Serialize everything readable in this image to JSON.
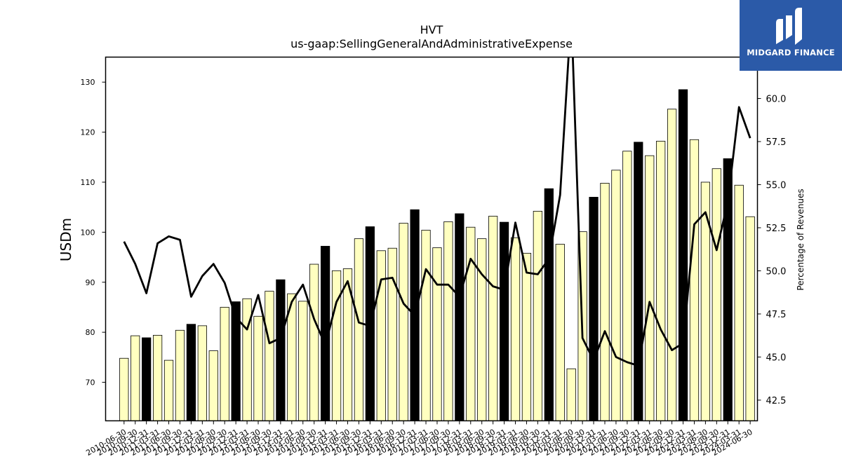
{
  "brand": {
    "name": "MIDGARD FINANCE",
    "bg_color": "#2b5aa8"
  },
  "chart_data": {
    "type": "bar",
    "title": "HVT",
    "subtitle": "us-gaap:SellingGeneralAndAdministrativeExpense",
    "ylabel": "USDm",
    "ylabel_right": "Percentage of Revenues",
    "ylim": [
      62.3,
      135.0
    ],
    "ylim_right": [
      41.3,
      62.4
    ],
    "yticks": [
      70,
      80,
      90,
      100,
      110,
      120,
      130
    ],
    "yticks_right": [
      "42.5",
      "45.0",
      "47.5",
      "50.0",
      "52.5",
      "55.0",
      "57.5",
      "60.0"
    ],
    "categories": [
      "2010-06-30",
      "2010-09-30",
      "2010-12-31",
      "2011-03-31",
      "2011-06-30",
      "2011-09-30",
      "2011-12-31",
      "2012-03-31",
      "2012-06-30",
      "2012-09-30",
      "2012-12-31",
      "2013-03-31",
      "2013-06-30",
      "2013-09-30",
      "2013-12-31",
      "2014-03-31",
      "2014-06-30",
      "2014-09-30",
      "2014-12-31",
      "2015-03-31",
      "2015-06-30",
      "2015-09-30",
      "2015-12-31",
      "2016-03-31",
      "2016-06-30",
      "2016-09-30",
      "2016-12-31",
      "2017-03-31",
      "2017-06-30",
      "2017-09-30",
      "2017-12-31",
      "2018-03-31",
      "2018-06-30",
      "2018-09-30",
      "2018-12-31",
      "2019-03-31",
      "2019-06-30",
      "2019-09-30",
      "2019-12-31",
      "2020-03-31",
      "2020-06-30",
      "2020-09-30",
      "2020-12-31",
      "2021-03-31",
      "2021-06-30",
      "2021-09-30",
      "2021-12-31",
      "2022-03-31",
      "2022-06-30",
      "2022-09-30",
      "2022-12-31",
      "2023-03-31",
      "2023-06-30",
      "2023-09-30",
      "2023-12-31",
      "2024-03-31",
      "2024-06-30"
    ],
    "series": [
      {
        "type": "bar",
        "values": [
          74.8,
          79.3,
          78.9,
          79.4,
          74.4,
          80.4,
          81.6,
          81.3,
          76.3,
          85.0,
          86.1,
          86.7,
          83.2,
          88.2,
          90.5,
          87.7,
          86.2,
          93.6,
          97.2,
          92.3,
          92.7,
          98.7,
          101.1,
          96.3,
          96.8,
          101.8,
          104.5,
          100.4,
          96.9,
          102.1,
          103.7,
          101.0,
          98.7,
          103.2,
          102.0,
          98.9,
          95.8,
          104.2,
          108.7,
          97.6,
          72.7,
          100.1,
          107.0,
          109.8,
          112.4,
          116.2,
          118.0,
          115.3,
          118.2,
          124.6,
          128.5,
          118.5,
          110.0,
          112.7,
          114.7,
          109.4,
          103.1
        ],
        "highlight": [
          false,
          false,
          true,
          false,
          false,
          false,
          true,
          false,
          false,
          false,
          true,
          false,
          false,
          false,
          true,
          false,
          false,
          false,
          true,
          false,
          false,
          false,
          true,
          false,
          false,
          false,
          true,
          false,
          false,
          false,
          true,
          false,
          false,
          false,
          true,
          false,
          false,
          false,
          true,
          false,
          false,
          false,
          true,
          false,
          false,
          false,
          true,
          false,
          false,
          false,
          true,
          false,
          false,
          false,
          true,
          false,
          false
        ],
        "color": "#ffffc0",
        "highlight_color": "#000000"
      },
      {
        "type": "line",
        "axis": "right",
        "values": [
          51.7,
          50.4,
          48.7,
          51.6,
          52.0,
          51.8,
          48.5,
          49.7,
          50.4,
          49.3,
          47.3,
          46.6,
          48.6,
          45.8,
          46.1,
          48.2,
          49.2,
          47.2,
          45.7,
          48.2,
          49.4,
          47.0,
          46.8,
          49.5,
          49.6,
          48.1,
          47.4,
          50.1,
          49.2,
          49.2,
          48.5,
          50.7,
          49.8,
          49.1,
          48.9,
          52.8,
          49.9,
          49.8,
          50.7,
          54.4,
          65.0,
          46.1,
          44.8,
          46.5,
          45.0,
          44.7,
          44.5,
          48.2,
          46.6,
          45.4,
          45.8,
          52.7,
          53.4,
          51.2,
          54.0,
          59.5,
          57.7
        ],
        "color": "#000000"
      }
    ],
    "grid": false,
    "legend": "none"
  }
}
